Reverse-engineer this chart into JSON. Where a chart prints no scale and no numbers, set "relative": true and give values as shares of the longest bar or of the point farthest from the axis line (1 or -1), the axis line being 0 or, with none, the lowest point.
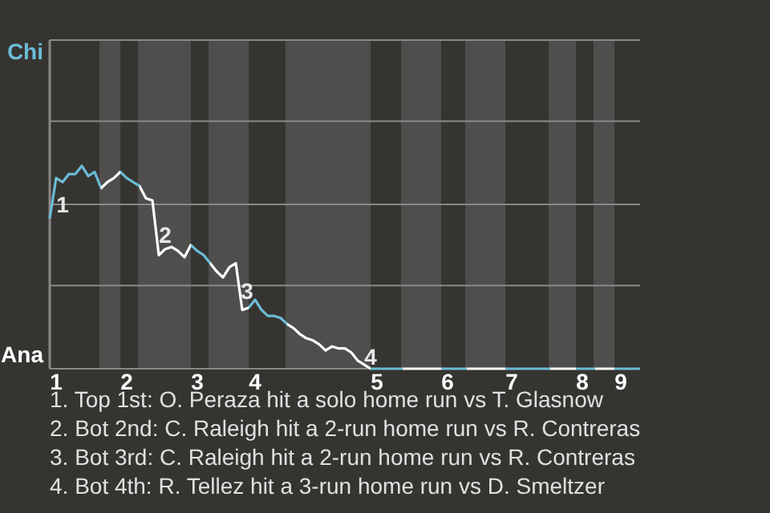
{
  "chart_data": {
    "type": "line",
    "relative": true,
    "categories": [
      null,
      "1",
      null,
      null,
      null,
      null,
      null,
      null,
      null,
      null,
      null,
      null,
      "2",
      null,
      null,
      null,
      null,
      null,
      null,
      null,
      null,
      null,
      null,
      "3",
      null,
      null,
      null,
      null,
      null,
      null,
      null,
      null,
      "4",
      null,
      null,
      null,
      null,
      null,
      null,
      null,
      null,
      null,
      null,
      null,
      null,
      null,
      null,
      null,
      null,
      null,
      null,
      "5",
      null,
      null,
      null,
      null,
      null,
      null,
      null,
      null,
      null,
      null,
      "6",
      null,
      null,
      null,
      null,
      null,
      null,
      null,
      null,
      null,
      "7",
      null,
      null,
      null,
      null,
      null,
      null,
      null,
      null,
      null,
      null,
      "8",
      null,
      null,
      null,
      null,
      null,
      "9",
      null,
      null,
      null
    ],
    "marker": "none",
    "line_style": "solid",
    "ref_lines": [
      {
        "axis": "y",
        "value": 0,
        "label": "Ana",
        "color": "#8a8886"
      },
      {
        "axis": "y",
        "value": 0.41,
        "label": null,
        "color": "#8a8886"
      },
      {
        "axis": "y",
        "value": 0.81,
        "label": null,
        "color": "#8a8886"
      },
      {
        "axis": "y",
        "value": 1.22,
        "label": null,
        "color": "#8a8886"
      },
      {
        "axis": "y",
        "value": 1.62,
        "label": "Chi",
        "color": "#8a8886"
      }
    ],
    "series": [
      {
        "values": [
          0.74,
          0.94,
          0.92,
          0.96,
          0.96,
          1,
          0.95,
          0.97,
          0.89,
          0.92,
          0.94,
          0.97,
          0.94,
          0.92,
          0.9,
          0.84,
          0.83,
          0.56,
          0.59,
          0.6,
          0.58,
          0.55,
          0.61,
          0.58,
          0.56,
          0.52,
          0.48,
          0.45,
          0.5,
          0.52,
          0.29,
          0.3,
          0.34,
          0.29,
          0.26,
          0.26,
          0.25,
          0.22,
          0.2,
          0.17,
          0.15,
          0.14,
          0.12,
          0.09,
          0.11,
          0.1,
          0.1,
          0.08,
          0.04,
          0.02,
          0,
          0,
          0,
          0,
          0,
          0,
          0,
          0,
          0,
          0,
          0,
          0,
          0,
          0,
          0,
          0,
          0,
          0,
          0,
          0,
          0,
          0,
          0,
          0,
          0,
          0,
          0,
          0,
          0,
          0,
          0,
          0,
          0,
          0,
          0,
          0,
          0,
          0,
          0,
          0,
          0,
          0,
          0
        ],
        "colors": [
          "#6bbcd6",
          "#6bbcd6",
          "#6bbcd6",
          "#6bbcd6",
          "#6bbcd6",
          "#6bbcd6",
          "#6bbcd6",
          "#6bbcd6",
          "#ffffff",
          "#ffffff",
          "#ffffff",
          "#6bbcd6",
          "#6bbcd6",
          "#6bbcd6",
          "#ffffff",
          "#ffffff",
          "#ffffff",
          "#ffffff",
          "#ffffff",
          "#ffffff",
          "#ffffff",
          "#ffffff",
          "#6bbcd6",
          "#6bbcd6",
          "#6bbcd6",
          "#ffffff",
          "#ffffff",
          "#ffffff",
          "#ffffff",
          "#ffffff",
          "#ffffff",
          "#6bbcd6",
          "#6bbcd6",
          "#6bbcd6",
          "#6bbcd6",
          "#6bbcd6",
          "#6bbcd6",
          "#ffffff",
          "#ffffff",
          "#ffffff",
          "#ffffff",
          "#ffffff",
          "#ffffff",
          "#ffffff",
          "#ffffff",
          "#ffffff",
          "#ffffff",
          "#ffffff",
          "#ffffff",
          "#ffffff",
          "#6bbcd6",
          "#6bbcd6",
          "#6bbcd6",
          "#6bbcd6",
          "#6bbcd6",
          "#ffffff",
          "#ffffff",
          "#ffffff",
          "#ffffff",
          "#ffffff",
          "#ffffff",
          "#6bbcd6",
          "#6bbcd6",
          "#6bbcd6",
          "#6bbcd6",
          "#ffffff",
          "#ffffff",
          "#ffffff",
          "#ffffff",
          "#ffffff",
          "#ffffff",
          "#6bbcd6",
          "#6bbcd6",
          "#6bbcd6",
          "#6bbcd6",
          "#6bbcd6",
          "#6bbcd6",
          "#6bbcd6",
          "#ffffff",
          "#ffffff",
          "#ffffff",
          "#ffffff",
          "#6bbcd6",
          "#6bbcd6",
          "#6bbcd6",
          "#ffffff",
          "#ffffff",
          "#ffffff",
          "#6bbcd6",
          "#6bbcd6",
          "#6bbcd6",
          "#6bbcd6",
          "#6bbcd6"
        ]
      }
    ],
    "annotations": [
      "1",
      "2",
      "3",
      "4",
      "1. Top 1st: O. Peraza hit a solo home run vs T. Glasnow",
      "2. Bot 2nd: C. Raleigh hit a 2-run home run vs R. Contreras",
      "3. Bot 3rd: C. Raleigh hit a 2-run home run vs R. Contreras",
      "4. Bot 4th: R. Tellez hit a 3-run home run vs D. Smeltzer"
    ]
  }
}
